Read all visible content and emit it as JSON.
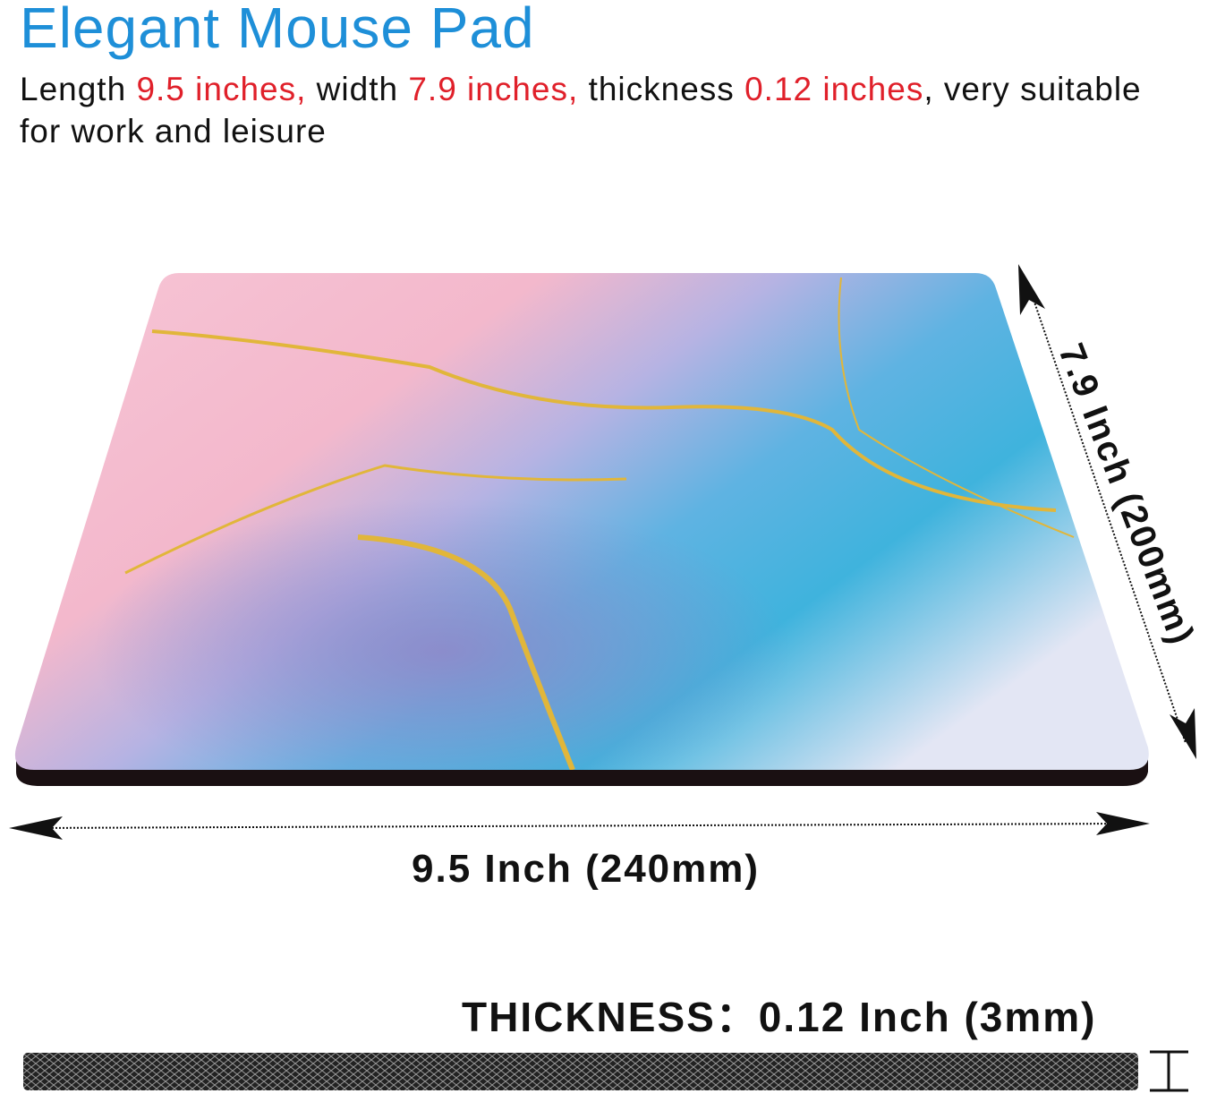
{
  "header": {
    "title": "Elegant Mouse Pad",
    "desc_parts": [
      "Length ",
      "9.5 inches,",
      " width ",
      "7.9 inches,",
      " thickness ",
      "0.12 inches",
      ", very suitable for work and leisure"
    ]
  },
  "dimensions": {
    "length_label": "9.5 Inch (240mm)",
    "width_label": "7.9 Inch (200mm)",
    "thickness_label": "THICKNESS：0.12 Inch (3mm)"
  },
  "colors": {
    "title": "#1e8fd8",
    "highlight": "#e0202a",
    "pink": "#f7c6d6",
    "blue": "#3fb3dd",
    "purple": "#8f86c8",
    "gold": "#e1b63a"
  }
}
